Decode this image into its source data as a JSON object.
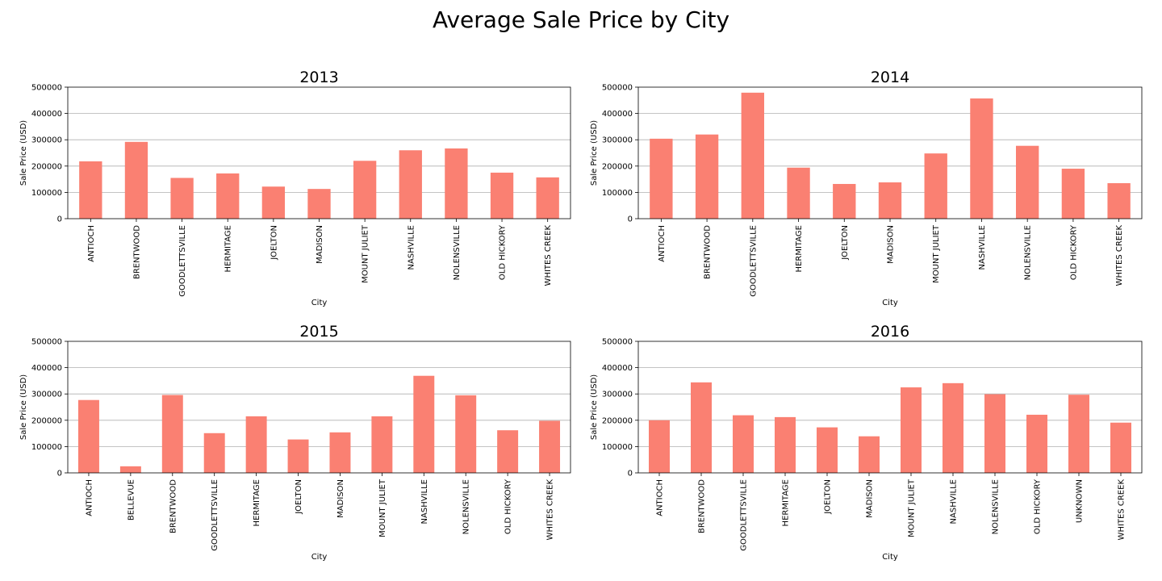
{
  "title": "Average Sale Price by City",
  "bar_color": "#fa8072",
  "grid_color": "#b0b0b0",
  "chart_data": [
    {
      "type": "bar",
      "title": "2013",
      "xlabel": "City",
      "ylabel": "Sale Price (USD)",
      "ylim": [
        0,
        500000
      ],
      "yticks": [
        0,
        100000,
        200000,
        300000,
        400000,
        500000
      ],
      "grid": "y",
      "categories": [
        "ANTIOCH",
        "BRENTWOOD",
        "GOODLETTSVILLE",
        "HERMITAGE",
        "JOELTON",
        "MADISON",
        "MOUNT JULIET",
        "NASHVILLE",
        "NOLENSVILLE",
        "OLD HICKORY",
        "WHITES CREEK"
      ],
      "values": [
        218000,
        292000,
        155000,
        172000,
        122000,
        113000,
        220000,
        260000,
        267000,
        175000,
        157000
      ]
    },
    {
      "type": "bar",
      "title": "2014",
      "xlabel": "City",
      "ylabel": "Sale Price (USD)",
      "ylim": [
        0,
        500000
      ],
      "yticks": [
        0,
        100000,
        200000,
        300000,
        400000,
        500000
      ],
      "grid": "y",
      "categories": [
        "ANTIOCH",
        "BRENTWOOD",
        "GOODLETTSVILLE",
        "HERMITAGE",
        "JOELTON",
        "MADISON",
        "MOUNT JULIET",
        "NASHVILLE",
        "NOLENSVILLE",
        "OLD HICKORY",
        "WHITES CREEK"
      ],
      "values": [
        304000,
        320000,
        479000,
        194000,
        132000,
        138000,
        248000,
        457000,
        277000,
        190000,
        135000
      ]
    },
    {
      "type": "bar",
      "title": "2015",
      "xlabel": "City",
      "ylabel": "Sale Price (USD)",
      "ylim": [
        0,
        500000
      ],
      "yticks": [
        0,
        100000,
        200000,
        300000,
        400000,
        500000
      ],
      "grid": "y",
      "categories": [
        "ANTIOCH",
        "BELLEVUE",
        "BRENTWOOD",
        "GOODLETTSVILLE",
        "HERMITAGE",
        "JOELTON",
        "MADISON",
        "MOUNT JULIET",
        "NASHVILLE",
        "NOLENSVILLE",
        "OLD HICKORY",
        "WHITES CREEK"
      ],
      "values": [
        277000,
        25000,
        296000,
        151000,
        215000,
        127000,
        154000,
        215000,
        369000,
        295000,
        162000,
        198000
      ]
    },
    {
      "type": "bar",
      "title": "2016",
      "xlabel": "City",
      "ylabel": "Sale Price (USD)",
      "ylim": [
        0,
        500000
      ],
      "yticks": [
        0,
        100000,
        200000,
        300000,
        400000,
        500000
      ],
      "grid": "y",
      "categories": [
        "ANTIOCH",
        "BRENTWOOD",
        "GOODLETTSVILLE",
        "HERMITAGE",
        "JOELTON",
        "MADISON",
        "MOUNT JULIET",
        "NASHVILLE",
        "NOLENSVILLE",
        "OLD HICKORY",
        "UNKNOWN",
        "WHITES CREEK"
      ],
      "values": [
        200000,
        344000,
        219000,
        212000,
        173000,
        139000,
        325000,
        341000,
        299000,
        221000,
        297000,
        191000
      ]
    }
  ]
}
